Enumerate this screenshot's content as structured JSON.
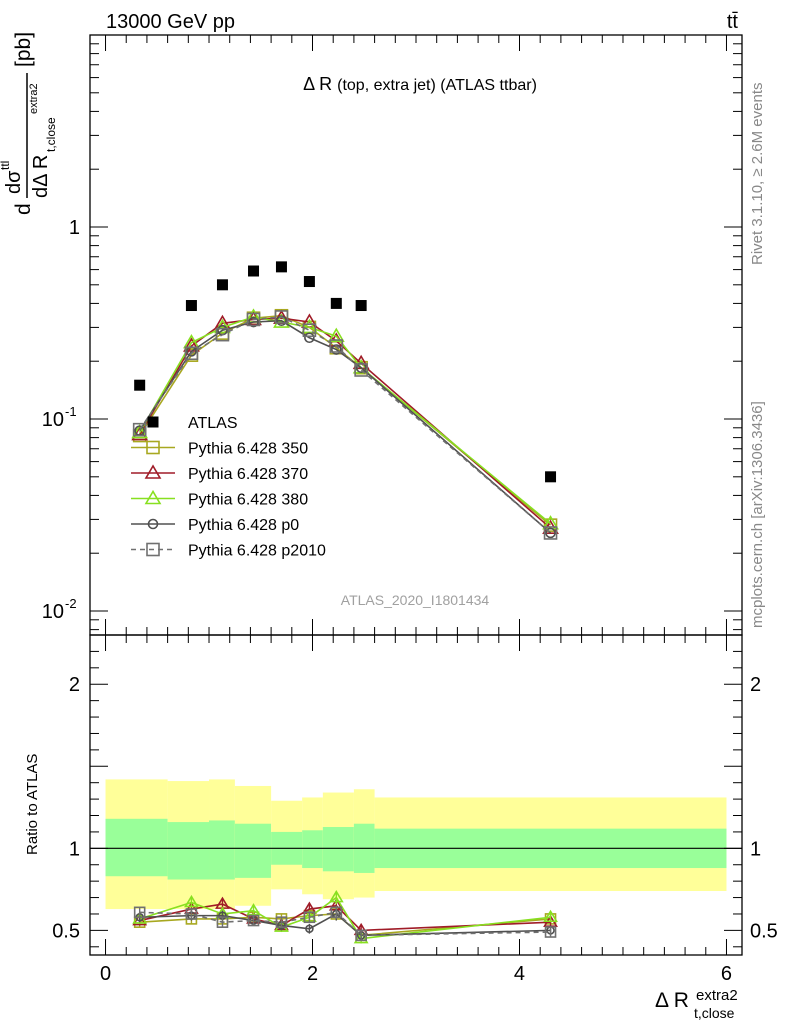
{
  "header": {
    "left": "13000 GeV pp",
    "right": "tt̄"
  },
  "side_labels": {
    "rivet": "Rivet 3.1.10, ≥ 2.6M events",
    "mcplots": "mcplots.cern.ch [arXiv:1306.3436]"
  },
  "main_title": {
    "prefix": "Δ R",
    "detail": "(top, extra jet) (ATLAS ttbar)"
  },
  "analysis_id": "ATLAS_2020_I1801434",
  "colors": {
    "data": "#000000",
    "p350": "#a8a820",
    "p370": "#a01c28",
    "p380": "#88e020",
    "p0": "#505050",
    "p2010": "#707070",
    "band_inner": "#99ff99",
    "band_outer": "#ffff99"
  },
  "chart_data": [
    {
      "type": "scatter",
      "scale": "log",
      "ylabel": "dσ^ttl / dΔ R^extra2_t,close [pb]",
      "xlim": [
        -0.15,
        6.15
      ],
      "ylim": [
        0.0075,
        10
      ],
      "y_ticks": [
        {
          "value": 0.01,
          "label": "10^-2"
        },
        {
          "value": 0.1,
          "label": "10^-1"
        },
        {
          "value": 1,
          "label": "1"
        }
      ],
      "bins": [
        {
          "lo": 0.0,
          "hi": 0.6,
          "x": 0.33
        },
        {
          "lo": 0.6,
          "hi": 1.0,
          "x": 0.83
        },
        {
          "lo": 1.0,
          "hi": 1.25,
          "x": 1.13
        },
        {
          "lo": 1.25,
          "hi": 1.6,
          "x": 1.43
        },
        {
          "lo": 1.6,
          "hi": 1.9,
          "x": 1.7
        },
        {
          "lo": 1.9,
          "hi": 2.1,
          "x": 1.97
        },
        {
          "lo": 2.1,
          "hi": 2.4,
          "x": 2.23
        },
        {
          "lo": 2.4,
          "hi": 2.6,
          "x": 2.47
        },
        {
          "lo": 2.6,
          "hi": 6.0,
          "x": 4.3
        }
      ],
      "x": [
        0.33,
        0.83,
        1.13,
        1.43,
        1.7,
        1.97,
        2.23,
        2.47,
        4.3
      ],
      "series": [
        {
          "name": "ATLAS",
          "key": "data",
          "marker": "fsquare",
          "line": "none",
          "values": [
            0.15,
            0.39,
            0.5,
            0.59,
            0.62,
            0.52,
            0.4,
            0.39,
            0.05
          ]
        },
        {
          "name": "Pythia 6.428 350",
          "key": "p350",
          "marker": "square",
          "line": "solid",
          "values": [
            0.082,
            0.215,
            0.28,
            0.335,
            0.345,
            0.3,
            0.235,
            0.185,
            0.028
          ]
        },
        {
          "name": "Pythia 6.428 370",
          "key": "p370",
          "marker": "triangle",
          "line": "solid",
          "values": [
            0.083,
            0.24,
            0.315,
            0.33,
            0.335,
            0.32,
            0.255,
            0.195,
            0.027
          ]
        },
        {
          "name": "Pythia 6.428 380",
          "key": "p380",
          "marker": "triangle",
          "line": "solid",
          "values": [
            0.085,
            0.25,
            0.3,
            0.34,
            0.32,
            0.3,
            0.27,
            0.185,
            0.0285
          ]
        },
        {
          "name": "Pythia 6.428 p0",
          "key": "p0",
          "marker": "circle",
          "line": "solid",
          "values": [
            0.087,
            0.225,
            0.29,
            0.32,
            0.325,
            0.265,
            0.23,
            0.185,
            0.0255
          ]
        },
        {
          "name": "Pythia 6.428 p2010",
          "key": "p2010",
          "marker": "square",
          "line": "dashed",
          "values": [
            0.088,
            0.22,
            0.275,
            0.33,
            0.34,
            0.29,
            0.24,
            0.18,
            0.0255
          ]
        }
      ]
    },
    {
      "type": "line",
      "ylabel": "Ratio to ATLAS",
      "xlabel": "Δ R^extra2_t,close",
      "xlim": [
        -0.15,
        6.15
      ],
      "ylim": [
        0.35,
        2.3
      ],
      "x_ticks": [
        0,
        2,
        4,
        6
      ],
      "y_ticks": [
        0.5,
        1,
        2
      ],
      "x": [
        0.33,
        0.83,
        1.13,
        1.43,
        1.7,
        1.97,
        2.23,
        2.47,
        4.3
      ],
      "band": [
        {
          "lo": 0.0,
          "hi": 0.6,
          "inner": [
            0.83,
            1.18
          ],
          "outer": [
            0.63,
            1.42
          ]
        },
        {
          "lo": 0.6,
          "hi": 1.0,
          "inner": [
            0.81,
            1.16
          ],
          "outer": [
            0.63,
            1.41
          ]
        },
        {
          "lo": 1.0,
          "hi": 1.25,
          "inner": [
            0.81,
            1.17
          ],
          "outer": [
            0.63,
            1.42
          ]
        },
        {
          "lo": 1.25,
          "hi": 1.6,
          "inner": [
            0.82,
            1.15
          ],
          "outer": [
            0.65,
            1.38
          ]
        },
        {
          "lo": 1.6,
          "hi": 1.9,
          "inner": [
            0.9,
            1.1
          ],
          "outer": [
            0.75,
            1.29
          ]
        },
        {
          "lo": 1.9,
          "hi": 2.1,
          "inner": [
            0.88,
            1.11
          ],
          "outer": [
            0.72,
            1.31
          ]
        },
        {
          "lo": 2.1,
          "hi": 2.4,
          "inner": [
            0.86,
            1.13
          ],
          "outer": [
            0.69,
            1.34
          ]
        },
        {
          "lo": 2.4,
          "hi": 2.6,
          "inner": [
            0.85,
            1.15
          ],
          "outer": [
            0.7,
            1.36
          ]
        },
        {
          "lo": 2.6,
          "hi": 6.0,
          "inner": [
            0.88,
            1.12
          ],
          "outer": [
            0.74,
            1.31
          ]
        }
      ],
      "series": [
        {
          "name": "Pythia 6.428 350",
          "key": "p350",
          "marker": "square",
          "line": "solid",
          "values": [
            0.55,
            0.57,
            0.57,
            0.58,
            0.57,
            0.59,
            0.6,
            0.47,
            0.57
          ],
          "errors": [
            0.03,
            0.03,
            0.03,
            0.03,
            0.03,
            0.03,
            0.04,
            0.03,
            0.03
          ]
        },
        {
          "name": "Pythia 6.428 370",
          "key": "p370",
          "marker": "triangle",
          "line": "solid",
          "values": [
            0.56,
            0.63,
            0.66,
            0.57,
            0.53,
            0.63,
            0.65,
            0.5,
            0.55
          ],
          "errors": [
            0.03,
            0.03,
            0.03,
            0.03,
            0.03,
            0.03,
            0.04,
            0.03,
            0.03
          ]
        },
        {
          "name": "Pythia 6.428 380",
          "key": "p380",
          "marker": "triangle",
          "line": "solid",
          "values": [
            0.57,
            0.67,
            0.6,
            0.62,
            0.52,
            0.58,
            0.7,
            0.45,
            0.58
          ],
          "errors": [
            0.03,
            0.03,
            0.03,
            0.03,
            0.03,
            0.03,
            0.04,
            0.03,
            0.03
          ]
        },
        {
          "name": "Pythia 6.428 p0",
          "key": "p0",
          "marker": "circle",
          "line": "solid",
          "values": [
            0.58,
            0.59,
            0.59,
            0.56,
            0.53,
            0.51,
            0.6,
            0.47,
            0.5
          ],
          "errors": [
            0.03,
            0.03,
            0.03,
            0.03,
            0.03,
            0.03,
            0.04,
            0.03,
            0.03
          ]
        },
        {
          "name": "Pythia 6.428 p2010",
          "key": "p2010",
          "marker": "square",
          "line": "dashed",
          "values": [
            0.61,
            0.6,
            0.55,
            0.56,
            0.55,
            0.58,
            0.61,
            0.47,
            0.49
          ],
          "errors": [
            0.03,
            0.03,
            0.03,
            0.03,
            0.03,
            0.03,
            0.04,
            0.03,
            0.03
          ]
        }
      ]
    }
  ]
}
